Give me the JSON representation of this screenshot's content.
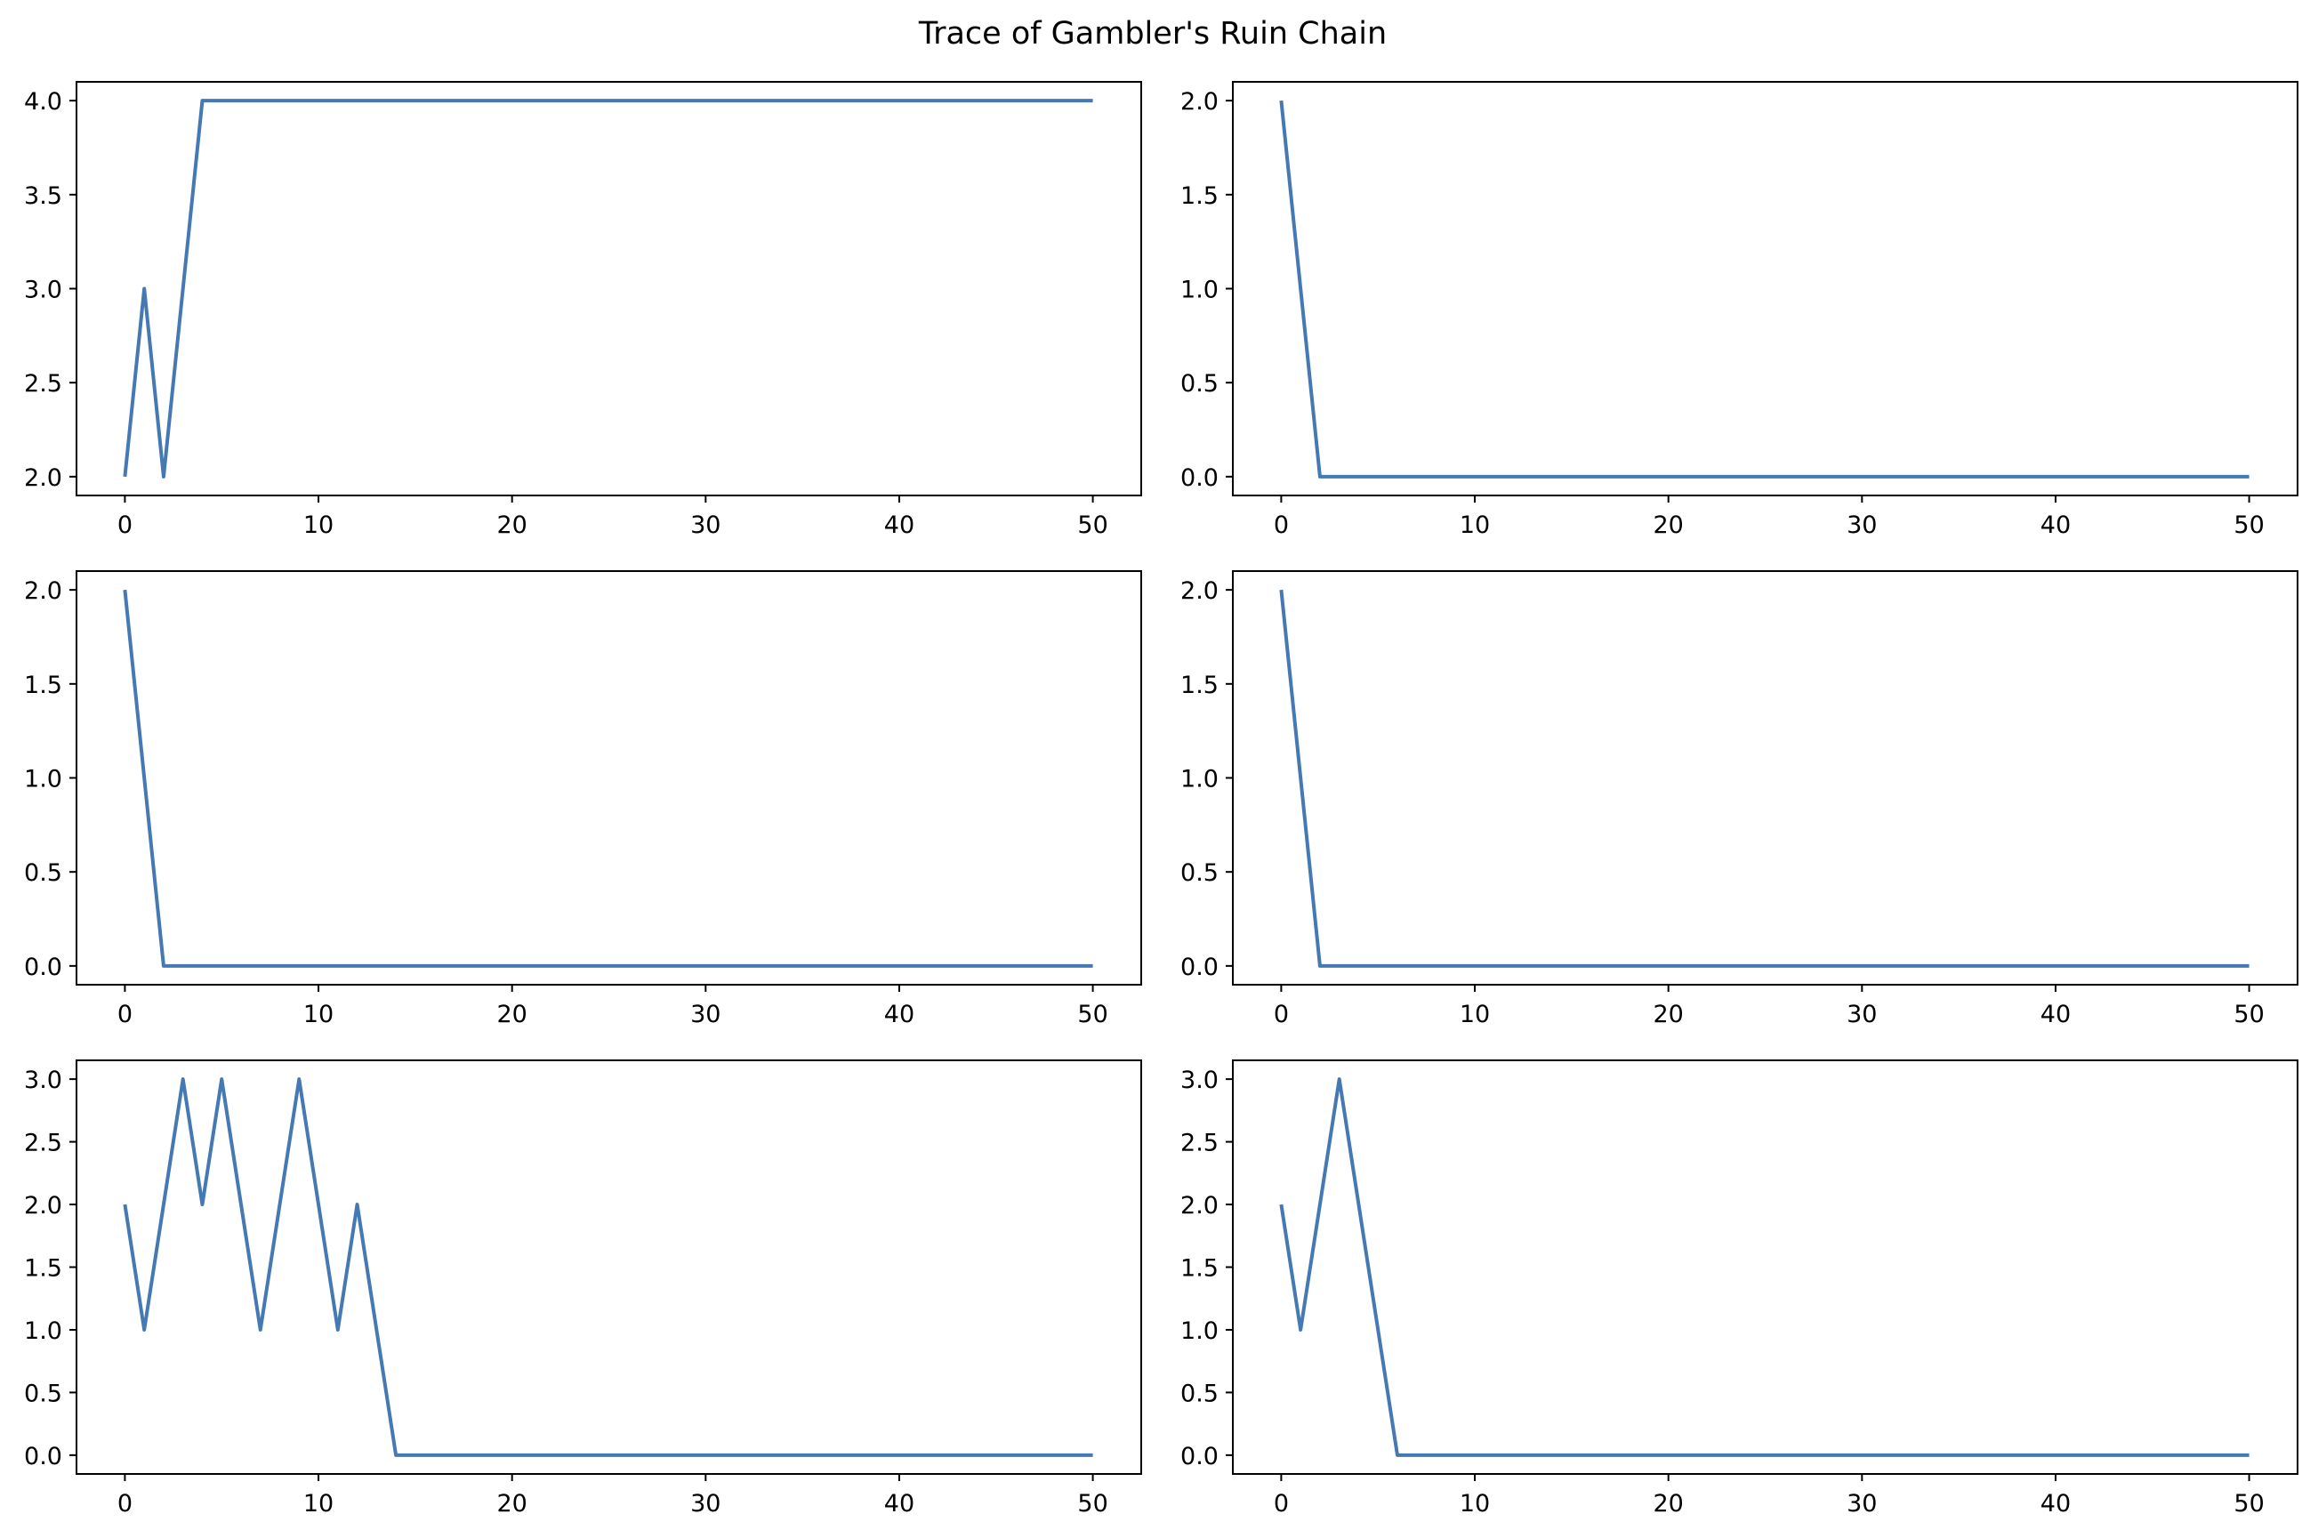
{
  "figure": {
    "title": "Trace of Gambler's Ruin Chain",
    "line_color": "#4479b4"
  },
  "chart_data": [
    {
      "type": "line",
      "title": "",
      "xlabel": "",
      "ylabel": "",
      "xlim": [
        -2.5,
        52.5
      ],
      "ylim": [
        1.9,
        4.1
      ],
      "xticks": [
        0,
        10,
        20,
        30,
        40,
        50
      ],
      "xtick_labels": [
        "0",
        "10",
        "20",
        "30",
        "40",
        "50"
      ],
      "yticks": [
        2.0,
        2.5,
        3.0,
        3.5,
        4.0
      ],
      "ytick_labels": [
        "2.0",
        "2.5",
        "3.0",
        "3.5",
        "4.0"
      ],
      "grid": false,
      "series": [
        {
          "x": [
            0,
            1,
            2,
            4,
            50
          ],
          "y": [
            2,
            3,
            2,
            4,
            4
          ]
        }
      ]
    },
    {
      "type": "line",
      "title": "",
      "xlabel": "",
      "ylabel": "",
      "xlim": [
        -2.5,
        52.5
      ],
      "ylim": [
        -0.1,
        2.1
      ],
      "xticks": [
        0,
        10,
        20,
        30,
        40,
        50
      ],
      "xtick_labels": [
        "0",
        "10",
        "20",
        "30",
        "40",
        "50"
      ],
      "yticks": [
        0.0,
        0.5,
        1.0,
        1.5,
        2.0
      ],
      "ytick_labels": [
        "0.0",
        "0.5",
        "1.0",
        "1.5",
        "2.0"
      ],
      "grid": false,
      "series": [
        {
          "x": [
            0,
            2,
            50
          ],
          "y": [
            2,
            0,
            0
          ]
        }
      ]
    },
    {
      "type": "line",
      "title": "",
      "xlabel": "",
      "ylabel": "",
      "xlim": [
        -2.5,
        52.5
      ],
      "ylim": [
        -0.1,
        2.1
      ],
      "xticks": [
        0,
        10,
        20,
        30,
        40,
        50
      ],
      "xtick_labels": [
        "0",
        "10",
        "20",
        "30",
        "40",
        "50"
      ],
      "yticks": [
        0.0,
        0.5,
        1.0,
        1.5,
        2.0
      ],
      "ytick_labels": [
        "0.0",
        "0.5",
        "1.0",
        "1.5",
        "2.0"
      ],
      "grid": false,
      "series": [
        {
          "x": [
            0,
            2,
            50
          ],
          "y": [
            2,
            0,
            0
          ]
        }
      ]
    },
    {
      "type": "line",
      "title": "",
      "xlabel": "",
      "ylabel": "",
      "xlim": [
        -2.5,
        52.5
      ],
      "ylim": [
        -0.1,
        2.1
      ],
      "xticks": [
        0,
        10,
        20,
        30,
        40,
        50
      ],
      "xtick_labels": [
        "0",
        "10",
        "20",
        "30",
        "40",
        "50"
      ],
      "yticks": [
        0.0,
        0.5,
        1.0,
        1.5,
        2.0
      ],
      "ytick_labels": [
        "0.0",
        "0.5",
        "1.0",
        "1.5",
        "2.0"
      ],
      "grid": false,
      "series": [
        {
          "x": [
            0,
            2,
            50
          ],
          "y": [
            2,
            0,
            0
          ]
        }
      ]
    },
    {
      "type": "line",
      "title": "",
      "xlabel": "",
      "ylabel": "",
      "xlim": [
        -2.5,
        52.5
      ],
      "ylim": [
        -0.15,
        3.15
      ],
      "xticks": [
        0,
        10,
        20,
        30,
        40,
        50
      ],
      "xtick_labels": [
        "0",
        "10",
        "20",
        "30",
        "40",
        "50"
      ],
      "yticks": [
        0.0,
        0.5,
        1.0,
        1.5,
        2.0,
        2.5,
        3.0
      ],
      "ytick_labels": [
        "0.0",
        "0.5",
        "1.0",
        "1.5",
        "2.0",
        "2.5",
        "3.0"
      ],
      "grid": false,
      "series": [
        {
          "x": [
            0,
            1,
            3,
            4,
            5,
            7,
            9,
            11,
            12,
            14,
            50
          ],
          "y": [
            2,
            1,
            3,
            2,
            3,
            1,
            3,
            1,
            2,
            0,
            0
          ]
        }
      ]
    },
    {
      "type": "line",
      "title": "",
      "xlabel": "",
      "ylabel": "",
      "xlim": [
        -2.5,
        52.5
      ],
      "ylim": [
        -0.15,
        3.15
      ],
      "xticks": [
        0,
        10,
        20,
        30,
        40,
        50
      ],
      "xtick_labels": [
        "0",
        "10",
        "20",
        "30",
        "40",
        "50"
      ],
      "yticks": [
        0.0,
        0.5,
        1.0,
        1.5,
        2.0,
        2.5,
        3.0
      ],
      "ytick_labels": [
        "0.0",
        "0.5",
        "1.0",
        "1.5",
        "2.0",
        "2.5",
        "3.0"
      ],
      "grid": false,
      "series": [
        {
          "x": [
            0,
            1,
            3,
            6,
            50
          ],
          "y": [
            2,
            1,
            3,
            0,
            0
          ]
        }
      ]
    }
  ]
}
